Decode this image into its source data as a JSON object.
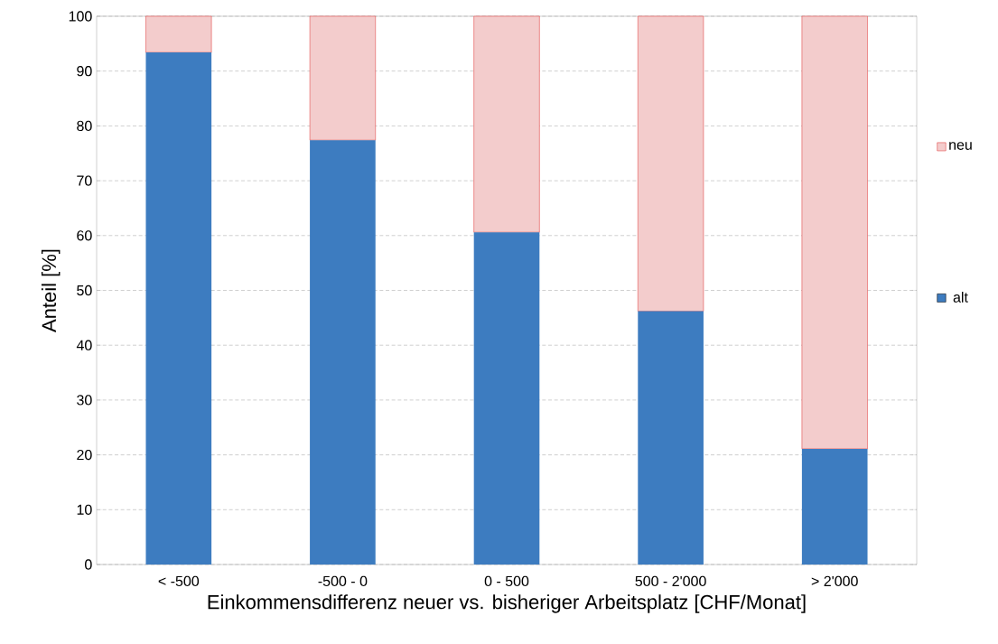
{
  "chart_data": {
    "type": "bar",
    "stacked": true,
    "xlabel": "Einkommensdifferenz neuer vs. bisheriger Arbeitsplatz [CHF/Monat]",
    "ylabel": "Anteil [%]",
    "categories": [
      "< -500",
      "-500 - 0",
      "0 - 500",
      "500 - 2'000",
      "> 2'000"
    ],
    "series": [
      {
        "name": "alt",
        "color": "#3d7cc0",
        "values": [
          93.4,
          77.4,
          60.6,
          46.2,
          21.1
        ]
      },
      {
        "name": "neu",
        "color": "#f3cccc",
        "values": [
          6.6,
          22.6,
          39.4,
          53.8,
          78.9
        ]
      }
    ],
    "ylim": [
      0,
      100
    ],
    "yticks": [
      0,
      10,
      20,
      30,
      40,
      50,
      60,
      70,
      80,
      90,
      100
    ],
    "grid": "y",
    "legend": "right"
  }
}
